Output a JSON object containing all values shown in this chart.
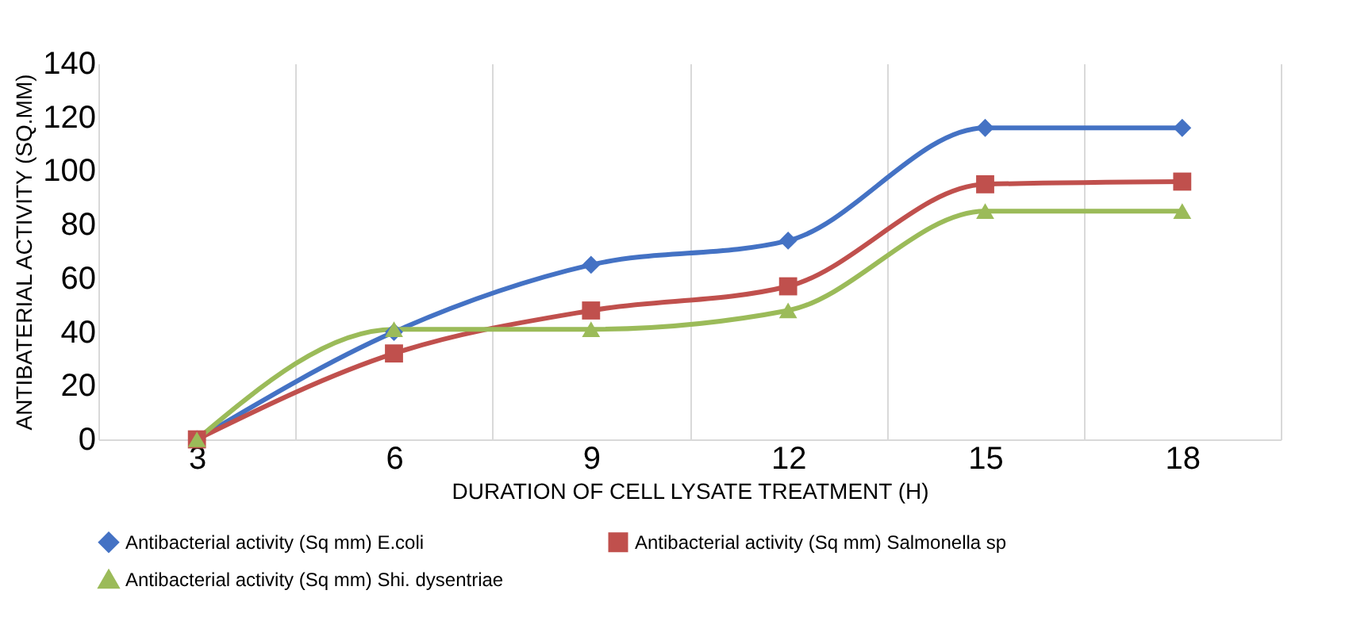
{
  "chart_data": {
    "type": "line",
    "xlabel": "DURATION OF CELL LYSATE TREATMENT (H)",
    "ylabel": "ANTIBATERIAL ACTIVITY (SQ.MM)",
    "categories": [
      "3",
      "6",
      "9",
      "12",
      "15",
      "18"
    ],
    "series": [
      {
        "name": "Antibacterial activity (Sq mm) E.coli",
        "color": "#4472c4",
        "marker": "diamond",
        "values": [
          0,
          40,
          65,
          74,
          116,
          116
        ]
      },
      {
        "name": "Antibacterial activity (Sq mm) Salmonella  sp",
        "color": "#c0504d",
        "marker": "square",
        "values": [
          0,
          32,
          48,
          57,
          95,
          96
        ]
      },
      {
        "name": "Antibacterial activity (Sq mm) Shi. dysentriae",
        "color": "#9bbb59",
        "marker": "triangle",
        "values": [
          0,
          41,
          41,
          48,
          85,
          85
        ]
      }
    ],
    "ylim": [
      0,
      140
    ],
    "yticks": [
      0,
      20,
      40,
      60,
      80,
      100,
      120,
      140
    ],
    "grid": "x",
    "legend": "bottom",
    "line_style": "solid"
  }
}
